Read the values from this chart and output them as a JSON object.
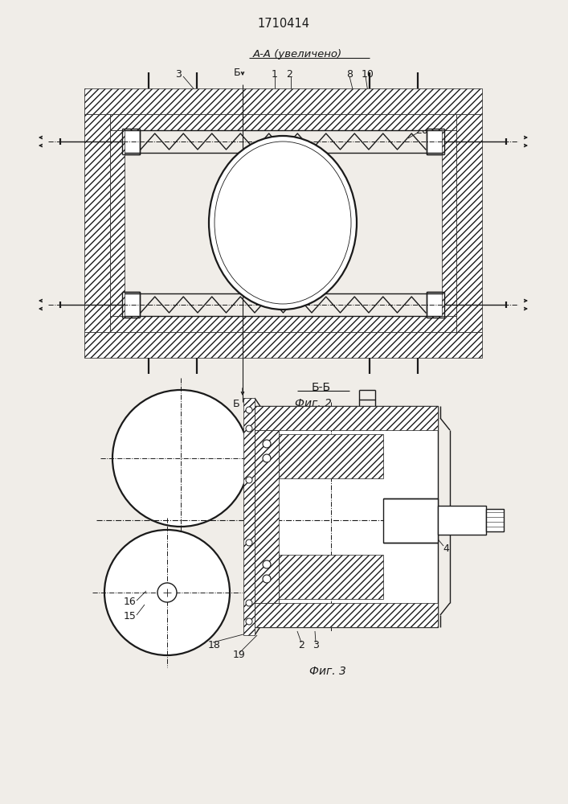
{
  "title": "1710414",
  "bg_color": "#f0ede8",
  "line_color": "#1a1a1a",
  "fig_width": 7.07,
  "fig_height": 10.0,
  "label_aa": "А-А (увеличено)",
  "label_bb": "Б-Б",
  "label_fig2": "Фиг. 2",
  "label_fig3": "Фиг. 3"
}
